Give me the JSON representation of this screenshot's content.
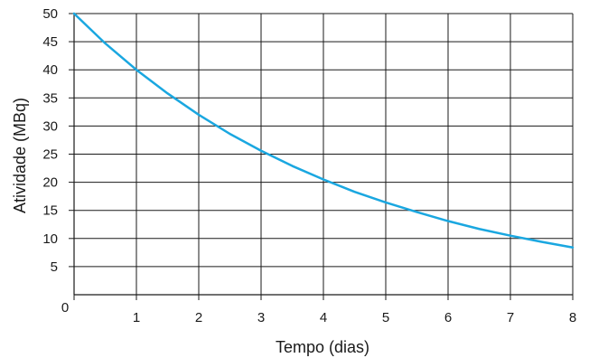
{
  "chart_data": {
    "type": "line",
    "title": "",
    "xlabel": "Tempo (dias)",
    "ylabel": "Atividade (MBq)",
    "xlim": [
      0,
      8
    ],
    "ylim": [
      0,
      50
    ],
    "x_ticks": [
      0,
      1,
      2,
      3,
      4,
      5,
      6,
      7,
      8
    ],
    "y_ticks": [
      5,
      10,
      15,
      20,
      25,
      30,
      35,
      40,
      45,
      50
    ],
    "grid": true,
    "legend": "none",
    "series": [
      {
        "color": "#1aa7e0",
        "x": [
          0,
          0.5,
          1,
          1.5,
          2,
          2.5,
          3,
          3.5,
          4,
          4.5,
          5,
          5.5,
          6,
          6.5,
          7,
          7.5,
          8
        ],
        "values": [
          50,
          44.7,
          40,
          35.8,
          32,
          28.6,
          25.6,
          22.9,
          20.5,
          18.3,
          16.4,
          14.7,
          13.1,
          11.7,
          10.5,
          9.4,
          8.4
        ]
      }
    ]
  }
}
